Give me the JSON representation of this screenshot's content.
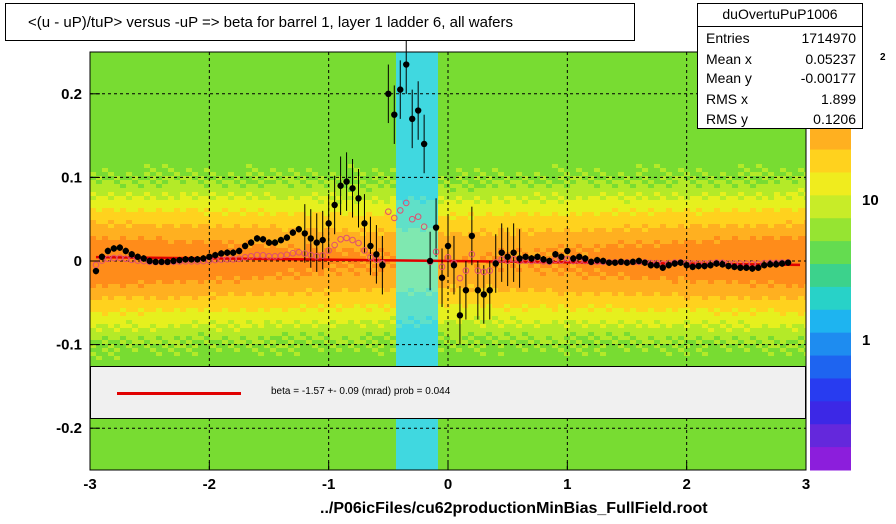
{
  "title": "<(u - uP)/tuP> versus  -uP => beta for barrel 1, layer 1 ladder 6, all wafers",
  "stats": {
    "name": "duOvertuPuP1006",
    "rows": [
      {
        "label": "Entries",
        "value": "1714970"
      },
      {
        "label": "Mean x",
        "value": "0.05237"
      },
      {
        "label": "Mean y",
        "value": "-0.00177"
      },
      {
        "label": "RMS x",
        "value": "1.899"
      },
      {
        "label": "RMS y",
        "value": "0.1206"
      }
    ]
  },
  "fit_label": "beta =   -1.57 +-  0.09 (mrad) prob = 0.044",
  "footer": "../P06icFiles/cu62productionMinBias_FullField.root",
  "zaxis": {
    "ticks": [
      "10",
      "1"
    ],
    "exponent": "2"
  },
  "colors": {
    "fit_line": "#e00000",
    "profile_points": "#000000",
    "open_markers": "#e05070"
  },
  "chart_data": {
    "type": "scatter",
    "xlim": [
      -3,
      3
    ],
    "ylim": [
      -0.25,
      0.25
    ],
    "x_ticks": [
      "-3",
      "-2",
      "-1",
      "0",
      "1",
      "2",
      "3"
    ],
    "y_ticks": [
      "0.2",
      "0.1",
      "0",
      "-0.1",
      "-0.2"
    ],
    "grid": true,
    "background": "2D histogram heatmap (log color scale)",
    "fit": {
      "slope_mrad": -1.57,
      "error_mrad": 0.09,
      "prob": 0.044
    },
    "series": [
      {
        "values": [
          [
            -2.95,
            -0.012
          ],
          [
            -2.9,
            0.005
          ],
          [
            -2.85,
            0.012
          ],
          [
            -2.8,
            0.015
          ],
          [
            -2.75,
            0.016
          ],
          [
            -2.7,
            0.012
          ],
          [
            -2.65,
            0.008
          ],
          [
            -2.6,
            0.005
          ],
          [
            -2.55,
            0.003
          ],
          [
            -2.5,
            0.0
          ],
          [
            -2.45,
            -0.001
          ],
          [
            -2.4,
            -0.001
          ],
          [
            -2.35,
            -0.001
          ],
          [
            -2.3,
            0.0
          ],
          [
            -2.25,
            0.001
          ],
          [
            -2.2,
            0.002
          ],
          [
            -2.15,
            0.002
          ],
          [
            -2.1,
            0.002
          ],
          [
            -2.05,
            0.003
          ],
          [
            -2.0,
            0.005
          ],
          [
            -1.95,
            0.007
          ],
          [
            -1.9,
            0.009
          ],
          [
            -1.85,
            0.01
          ],
          [
            -1.8,
            0.01
          ],
          [
            -1.75,
            0.012
          ],
          [
            -1.7,
            0.018
          ],
          [
            -1.65,
            0.022
          ],
          [
            -1.6,
            0.027
          ],
          [
            -1.55,
            0.026
          ],
          [
            -1.5,
            0.022
          ],
          [
            -1.45,
            0.022
          ],
          [
            -1.4,
            0.025
          ],
          [
            -1.35,
            0.028
          ],
          [
            -1.3,
            0.034
          ],
          [
            -1.25,
            0.038
          ],
          [
            -1.2,
            0.033
          ],
          [
            -1.15,
            0.027
          ],
          [
            -1.1,
            0.022
          ],
          [
            -1.05,
            0.025
          ],
          [
            -1.0,
            0.045
          ],
          [
            -0.95,
            0.067
          ],
          [
            -0.9,
            0.09
          ],
          [
            -0.85,
            0.095
          ],
          [
            -0.8,
            0.087
          ],
          [
            -0.75,
            0.075
          ],
          [
            -0.7,
            0.045
          ],
          [
            -0.65,
            0.018
          ],
          [
            -0.6,
            0.008
          ],
          [
            -0.55,
            -0.005
          ],
          [
            -0.5,
            0.2
          ],
          [
            -0.45,
            0.175
          ],
          [
            -0.4,
            0.205
          ],
          [
            -0.35,
            0.235
          ],
          [
            -0.3,
            0.17
          ],
          [
            -0.25,
            0.18
          ],
          [
            -0.2,
            0.14
          ],
          [
            -0.15,
            0.0
          ],
          [
            -0.1,
            0.04
          ],
          [
            -0.05,
            -0.02
          ],
          [
            0.0,
            0.018
          ],
          [
            0.05,
            -0.005
          ],
          [
            0.1,
            -0.065
          ],
          [
            0.15,
            -0.035
          ],
          [
            0.2,
            0.03
          ],
          [
            0.25,
            -0.035
          ],
          [
            0.3,
            -0.04
          ],
          [
            0.35,
            -0.035
          ],
          [
            0.4,
            -0.003
          ],
          [
            0.45,
            0.01
          ],
          [
            0.5,
            0.005
          ],
          [
            0.55,
            0.01
          ],
          [
            0.6,
            0.003
          ],
          [
            0.65,
            0.005
          ],
          [
            0.7,
            0.003
          ],
          [
            0.75,
            0.005
          ],
          [
            0.8,
            0.002
          ],
          [
            0.85,
            0.0
          ],
          [
            0.9,
            0.008
          ],
          [
            0.95,
            0.005
          ],
          [
            1.0,
            0.012
          ],
          [
            1.05,
            0.003
          ],
          [
            1.1,
            0.005
          ],
          [
            1.15,
            0.003
          ],
          [
            1.2,
            -0.001
          ],
          [
            1.25,
            0.001
          ],
          [
            1.3,
            0.0
          ],
          [
            1.35,
            -0.002
          ],
          [
            1.4,
            -0.002
          ],
          [
            1.45,
            -0.001
          ],
          [
            1.5,
            -0.002
          ],
          [
            1.55,
            -0.001
          ],
          [
            1.6,
            0.0
          ],
          [
            1.65,
            -0.002
          ],
          [
            1.7,
            -0.005
          ],
          [
            1.75,
            -0.005
          ],
          [
            1.8,
            -0.008
          ],
          [
            1.85,
            -0.005
          ],
          [
            1.9,
            -0.003
          ],
          [
            1.95,
            -0.002
          ],
          [
            2.0,
            -0.005
          ],
          [
            2.05,
            -0.007
          ],
          [
            2.1,
            -0.006
          ],
          [
            2.15,
            -0.006
          ],
          [
            2.2,
            -0.005
          ],
          [
            2.25,
            -0.003
          ],
          [
            2.3,
            -0.004
          ],
          [
            2.35,
            -0.006
          ],
          [
            2.4,
            -0.007
          ],
          [
            2.45,
            -0.008
          ],
          [
            2.5,
            -0.008
          ],
          [
            2.55,
            -0.009
          ],
          [
            2.6,
            -0.008
          ],
          [
            2.65,
            -0.005
          ],
          [
            2.7,
            -0.004
          ],
          [
            2.75,
            -0.004
          ],
          [
            2.8,
            -0.003
          ],
          [
            2.85,
            -0.002
          ]
        ]
      }
    ]
  }
}
